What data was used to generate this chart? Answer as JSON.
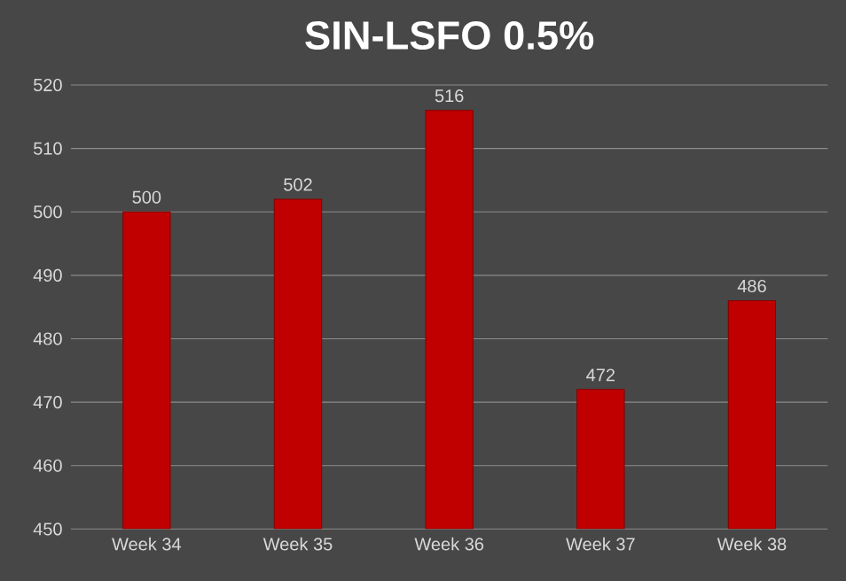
{
  "chart_data": {
    "type": "bar",
    "title": "SIN-LSFO 0.5%",
    "categories": [
      "Week 34",
      "Week 35",
      "Week 36",
      "Week 37",
      "Week 38"
    ],
    "values": [
      500,
      502,
      516,
      472,
      486
    ],
    "color": "#c00000",
    "ylim": [
      450,
      520
    ],
    "yticks": [
      450,
      460,
      470,
      480,
      490,
      500,
      510,
      520
    ],
    "grid": "y",
    "data_labels": true
  }
}
